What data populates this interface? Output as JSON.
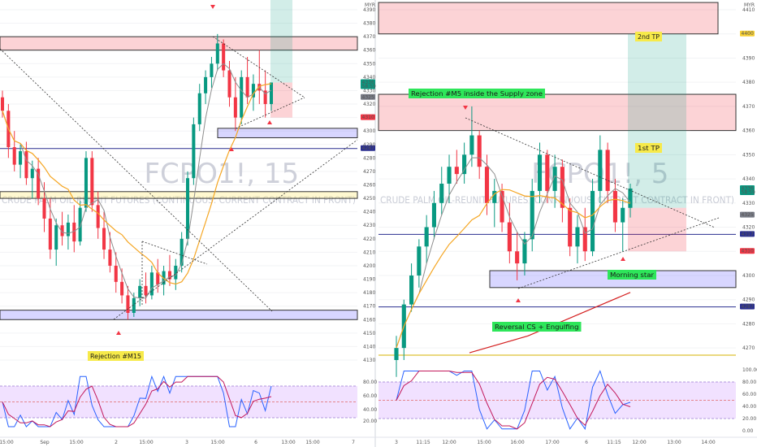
{
  "chart_data": [
    {
      "type": "candlestick",
      "title": "",
      "watermark": {
        "symbol": "FCPO1!, 15",
        "description": "CRUDE PALM OIL-REUNIT FUTURES (CONTINUOUS: CURRENT CONTRACT IN FRONT)"
      },
      "currency": "MYR",
      "y_ticks": [
        4390,
        4380,
        4370,
        4360,
        4350,
        4340,
        4330,
        4320,
        4310,
        4300,
        4290,
        4280,
        4270,
        4260,
        4250,
        4240,
        4230,
        4220,
        4210,
        4200,
        4190,
        4180,
        4170,
        4160,
        4150,
        4140,
        4130
      ],
      "x_ticks": [
        "15:00",
        "Sep",
        "15:00",
        "2",
        "15:00",
        "3",
        "15:00",
        "6",
        "13:00",
        "15:00",
        "7"
      ],
      "price_badges": [
        {
          "price": "4336",
          "sub": "58:59",
          "color": "#089981"
        },
        {
          "price": "4325",
          "color": "#787b86"
        },
        {
          "price": "4310",
          "color": "#f23645"
        },
        {
          "price": "4287",
          "color": "#2a2e8f"
        }
      ],
      "supply_zone": [
        4360,
        4370
      ],
      "demand_zone": [
        4160,
        4167
      ],
      "demand_zone_2": [
        4295,
        4302
      ],
      "yellow_zone": [
        4250,
        4255
      ],
      "horizontal_line": 4287,
      "candles": [
        {
          "o": 4325,
          "h": 4330,
          "l": 4310,
          "c": 4315
        },
        {
          "o": 4315,
          "h": 4320,
          "l": 4280,
          "c": 4288
        },
        {
          "o": 4288,
          "h": 4300,
          "l": 4270,
          "c": 4275
        },
        {
          "o": 4275,
          "h": 4290,
          "l": 4265,
          "c": 4285
        },
        {
          "o": 4285,
          "h": 4292,
          "l": 4260,
          "c": 4265
        },
        {
          "o": 4265,
          "h": 4278,
          "l": 4250,
          "c": 4272
        },
        {
          "o": 4272,
          "h": 4280,
          "l": 4245,
          "c": 4250
        },
        {
          "o": 4250,
          "h": 4262,
          "l": 4225,
          "c": 4235
        },
        {
          "o": 4235,
          "h": 4250,
          "l": 4205,
          "c": 4212
        },
        {
          "o": 4212,
          "h": 4235,
          "l": 4200,
          "c": 4230
        },
        {
          "o": 4230,
          "h": 4240,
          "l": 4215,
          "c": 4222
        },
        {
          "o": 4222,
          "h": 4238,
          "l": 4212,
          "c": 4232
        },
        {
          "o": 4232,
          "h": 4245,
          "l": 4210,
          "c": 4218
        },
        {
          "o": 4218,
          "h": 4248,
          "l": 4215,
          "c": 4243
        },
        {
          "o": 4243,
          "h": 4285,
          "l": 4240,
          "c": 4280
        },
        {
          "o": 4280,
          "h": 4285,
          "l": 4240,
          "c": 4245
        },
        {
          "o": 4245,
          "h": 4255,
          "l": 4220,
          "c": 4228
        },
        {
          "o": 4228,
          "h": 4240,
          "l": 4205,
          "c": 4212
        },
        {
          "o": 4212,
          "h": 4225,
          "l": 4195,
          "c": 4200
        },
        {
          "o": 4200,
          "h": 4210,
          "l": 4180,
          "c": 4188
        },
        {
          "o": 4188,
          "h": 4198,
          "l": 4172,
          "c": 4178
        },
        {
          "o": 4178,
          "h": 4185,
          "l": 4160,
          "c": 4165
        },
        {
          "o": 4165,
          "h": 4180,
          "l": 4162,
          "c": 4176
        },
        {
          "o": 4176,
          "h": 4190,
          "l": 4170,
          "c": 4185
        },
        {
          "o": 4185,
          "h": 4195,
          "l": 4172,
          "c": 4178
        },
        {
          "o": 4178,
          "h": 4200,
          "l": 4175,
          "c": 4195
        },
        {
          "o": 4195,
          "h": 4205,
          "l": 4180,
          "c": 4186
        },
        {
          "o": 4186,
          "h": 4200,
          "l": 4178,
          "c": 4196
        },
        {
          "o": 4196,
          "h": 4208,
          "l": 4185,
          "c": 4190
        },
        {
          "o": 4190,
          "h": 4205,
          "l": 4182,
          "c": 4200
        },
        {
          "o": 4200,
          "h": 4225,
          "l": 4195,
          "c": 4220
        },
        {
          "o": 4220,
          "h": 4270,
          "l": 4215,
          "c": 4265
        },
        {
          "o": 4265,
          "h": 4310,
          "l": 4260,
          "c": 4305
        },
        {
          "o": 4305,
          "h": 4335,
          "l": 4300,
          "c": 4328
        },
        {
          "o": 4328,
          "h": 4345,
          "l": 4320,
          "c": 4340
        },
        {
          "o": 4340,
          "h": 4355,
          "l": 4332,
          "c": 4350
        },
        {
          "o": 4350,
          "h": 4372,
          "l": 4345,
          "c": 4365
        },
        {
          "o": 4365,
          "h": 4368,
          "l": 4340,
          "c": 4345
        },
        {
          "o": 4345,
          "h": 4352,
          "l": 4318,
          "c": 4325
        },
        {
          "o": 4325,
          "h": 4340,
          "l": 4300,
          "c": 4310
        },
        {
          "o": 4310,
          "h": 4345,
          "l": 4305,
          "c": 4340
        },
        {
          "o": 4340,
          "h": 4355,
          "l": 4320,
          "c": 4325
        },
        {
          "o": 4325,
          "h": 4342,
          "l": 4315,
          "c": 4335
        },
        {
          "o": 4335,
          "h": 4360,
          "l": 4320,
          "c": 4330
        },
        {
          "o": 4330,
          "h": 4345,
          "l": 4310,
          "c": 4320
        },
        {
          "o": 4320,
          "h": 4336,
          "l": 4315,
          "c": 4336
        }
      ],
      "annotations": [
        {
          "text": "Rejection #M15",
          "kind": "yellow"
        }
      ],
      "oscillator": {
        "y_ticks": [
          "80.00",
          "60.00",
          "40.00",
          "20.00"
        ],
        "levels": [
          80,
          50,
          20
        ]
      }
    },
    {
      "type": "candlestick",
      "title": "",
      "watermark": {
        "symbol": "FCPO1!, 5",
        "description": "CRUDE PALM OIL-REUNIT FUTURES (CONTINUOUS: CURRENT CONTRACT IN FRONT)"
      },
      "currency": "MYR",
      "y_ticks": [
        4410,
        4400,
        4390,
        4380,
        4370,
        4360,
        4350,
        4340,
        4330,
        4320,
        4310,
        4300,
        4290,
        4280,
        4270
      ],
      "x_ticks": [
        "3",
        "11:15",
        "12:00",
        "15:00",
        "16:00",
        "17:00",
        "6",
        "11:15",
        "12:00",
        "13:00",
        "14:00"
      ],
      "price_badges": [
        {
          "price": "4400",
          "color": "#f7d034",
          "dark": true
        },
        {
          "price": "4336",
          "sub": "58:59",
          "color": "#089981"
        },
        {
          "price": "4325",
          "color": "#787b86"
        },
        {
          "price": "4317",
          "color": "#2a2e8f"
        },
        {
          "price": "4310",
          "color": "#f23645"
        },
        {
          "price": "4287",
          "color": "#2a2e8f"
        }
      ],
      "supply_zone": [
        4360,
        4375
      ],
      "supply_zone_2": [
        4400,
        4413
      ],
      "demand_zone": [
        4295,
        4302
      ],
      "horizontal_line": 4317,
      "candles": [
        {
          "o": 4265,
          "h": 4275,
          "l": 4258,
          "c": 4270
        },
        {
          "o": 4270,
          "h": 4290,
          "l": 4265,
          "c": 4288
        },
        {
          "o": 4288,
          "h": 4305,
          "l": 4285,
          "c": 4300
        },
        {
          "o": 4300,
          "h": 4315,
          "l": 4295,
          "c": 4312
        },
        {
          "o": 4312,
          "h": 4325,
          "l": 4305,
          "c": 4320
        },
        {
          "o": 4320,
          "h": 4335,
          "l": 4315,
          "c": 4330
        },
        {
          "o": 4330,
          "h": 4345,
          "l": 4325,
          "c": 4338
        },
        {
          "o": 4338,
          "h": 4350,
          "l": 4330,
          "c": 4345
        },
        {
          "o": 4345,
          "h": 4352,
          "l": 4338,
          "c": 4342
        },
        {
          "o": 4342,
          "h": 4355,
          "l": 4338,
          "c": 4350
        },
        {
          "o": 4350,
          "h": 4370,
          "l": 4345,
          "c": 4358
        },
        {
          "o": 4358,
          "h": 4360,
          "l": 4340,
          "c": 4345
        },
        {
          "o": 4345,
          "h": 4350,
          "l": 4325,
          "c": 4330
        },
        {
          "o": 4330,
          "h": 4340,
          "l": 4320,
          "c": 4335
        },
        {
          "o": 4335,
          "h": 4338,
          "l": 4318,
          "c": 4322
        },
        {
          "o": 4322,
          "h": 4330,
          "l": 4305,
          "c": 4310
        },
        {
          "o": 4310,
          "h": 4318,
          "l": 4298,
          "c": 4305
        },
        {
          "o": 4305,
          "h": 4318,
          "l": 4300,
          "c": 4315
        },
        {
          "o": 4315,
          "h": 4340,
          "l": 4310,
          "c": 4335
        },
        {
          "o": 4335,
          "h": 4355,
          "l": 4330,
          "c": 4350
        },
        {
          "o": 4350,
          "h": 4352,
          "l": 4330,
          "c": 4335
        },
        {
          "o": 4335,
          "h": 4350,
          "l": 4328,
          "c": 4345
        },
        {
          "o": 4345,
          "h": 4348,
          "l": 4322,
          "c": 4328
        },
        {
          "o": 4328,
          "h": 4332,
          "l": 4308,
          "c": 4312
        },
        {
          "o": 4312,
          "h": 4325,
          "l": 4305,
          "c": 4320
        },
        {
          "o": 4320,
          "h": 4328,
          "l": 4306,
          "c": 4310
        },
        {
          "o": 4310,
          "h": 4340,
          "l": 4308,
          "c": 4335
        },
        {
          "o": 4335,
          "h": 4358,
          "l": 4330,
          "c": 4352
        },
        {
          "o": 4352,
          "h": 4355,
          "l": 4330,
          "c": 4335
        },
        {
          "o": 4335,
          "h": 4340,
          "l": 4318,
          "c": 4322
        },
        {
          "o": 4322,
          "h": 4332,
          "l": 4310,
          "c": 4328
        },
        {
          "o": 4328,
          "h": 4338,
          "l": 4324,
          "c": 4336
        }
      ],
      "annotations": [
        {
          "text": "Rejection #M5 inside the Supply zone",
          "kind": "green"
        },
        {
          "text": "2nd TP",
          "kind": "yellow"
        },
        {
          "text": "1st TP",
          "kind": "yellow"
        },
        {
          "text": "Morning star",
          "kind": "green"
        },
        {
          "text": "Reversal CS + Engulfing",
          "kind": "green"
        }
      ],
      "oscillator": {
        "y_ticks": [
          "100.00",
          "80.00",
          "60.00",
          "40.00",
          "20.00",
          "0.00"
        ],
        "levels": [
          80,
          50,
          20
        ]
      }
    }
  ]
}
